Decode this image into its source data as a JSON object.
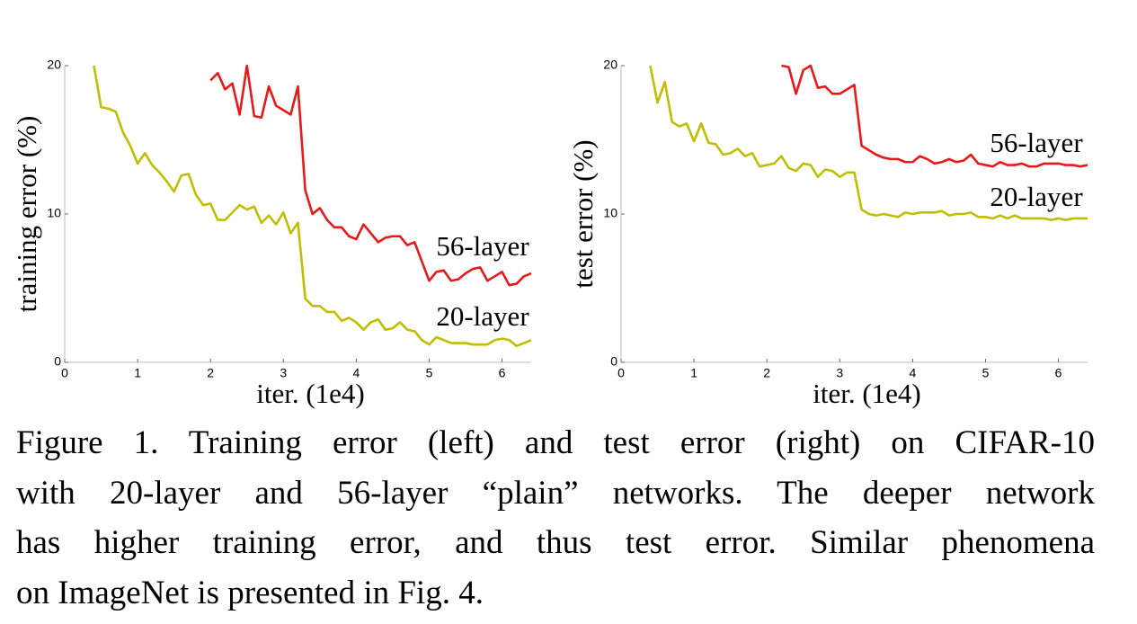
{
  "chart_data": [
    {
      "type": "line",
      "xlabel": "iter. (1e4)",
      "ylabel": "training error (%)",
      "x": [
        0.4,
        0.5,
        0.6,
        0.7,
        0.8,
        0.9,
        1.0,
        1.1,
        1.2,
        1.3,
        1.4,
        1.5,
        1.6,
        1.7,
        1.8,
        1.9,
        2.0,
        2.1,
        2.2,
        2.3,
        2.4,
        2.5,
        2.6,
        2.7,
        2.8,
        2.9,
        3.0,
        3.1,
        3.2,
        3.3,
        3.4,
        3.5,
        3.6,
        3.7,
        3.8,
        3.9,
        4.0,
        4.1,
        4.2,
        4.3,
        4.4,
        4.5,
        4.6,
        4.7,
        4.8,
        4.9,
        5.0,
        5.1,
        5.2,
        5.3,
        5.4,
        5.5,
        5.6,
        5.7,
        5.8,
        5.9,
        6.0,
        6.1,
        6.2,
        6.3,
        6.4
      ],
      "series": [
        {
          "name": "56-layer",
          "color": "#e8191a",
          "values": [
            null,
            null,
            null,
            null,
            null,
            null,
            null,
            null,
            null,
            null,
            null,
            null,
            null,
            null,
            null,
            null,
            19.0,
            19.5,
            18.4,
            18.8,
            16.7,
            20,
            16.6,
            16.5,
            18.6,
            17.3,
            17.0,
            16.7,
            18.6,
            11.6,
            10.0,
            10.4,
            9.6,
            9.1,
            9.1,
            8.5,
            8.3,
            9.3,
            8.7,
            8.1,
            8.4,
            8.5,
            8.5,
            7.9,
            8.1,
            6.8,
            5.5,
            6.1,
            6.2,
            5.5,
            5.6,
            6.0,
            6.3,
            6.4,
            5.5,
            5.8,
            6.1,
            5.2,
            5.3,
            5.8,
            6.0
          ]
        },
        {
          "name": "20-layer",
          "color": "#bfbf00",
          "values": [
            20,
            17.2,
            17.1,
            16.9,
            15.5,
            14.6,
            13.4,
            14.1,
            13.3,
            12.8,
            12.2,
            11.5,
            12.6,
            12.7,
            11.3,
            10.6,
            10.7,
            9.6,
            9.6,
            10.1,
            10.6,
            10.3,
            10.5,
            9.4,
            9.9,
            9.3,
            10.1,
            8.7,
            9.4,
            4.3,
            3.8,
            3.8,
            3.4,
            3.4,
            2.8,
            3.0,
            2.7,
            2.2,
            2.7,
            2.9,
            2.2,
            2.3,
            2.7,
            2.2,
            2.1,
            1.5,
            1.2,
            1.7,
            1.5,
            1.3,
            1.3,
            1.3,
            1.2,
            1.2,
            1.2,
            1.5,
            1.6,
            1.5,
            1.1,
            1.3,
            1.5
          ]
        }
      ],
      "xlim": [
        0,
        6.4
      ],
      "xticks": [
        0,
        1,
        2,
        3,
        4,
        5,
        6
      ],
      "ylim": [
        0,
        20
      ],
      "yticks": [
        0,
        10,
        20
      ],
      "grid": false
    },
    {
      "type": "line",
      "xlabel": "iter. (1e4)",
      "ylabel": "test error (%)",
      "x": [
        0.4,
        0.5,
        0.6,
        0.7,
        0.8,
        0.9,
        1.0,
        1.1,
        1.2,
        1.3,
        1.4,
        1.5,
        1.6,
        1.7,
        1.8,
        1.9,
        2.0,
        2.1,
        2.2,
        2.3,
        2.4,
        2.5,
        2.6,
        2.7,
        2.8,
        2.9,
        3.0,
        3.1,
        3.2,
        3.3,
        3.4,
        3.5,
        3.6,
        3.7,
        3.8,
        3.9,
        4.0,
        4.1,
        4.2,
        4.3,
        4.4,
        4.5,
        4.6,
        4.7,
        4.8,
        4.9,
        5.0,
        5.1,
        5.2,
        5.3,
        5.4,
        5.5,
        5.6,
        5.7,
        5.8,
        5.9,
        6.0,
        6.1,
        6.2,
        6.3,
        6.4
      ],
      "series": [
        {
          "name": "56-layer",
          "color": "#e8191a",
          "values": [
            null,
            null,
            null,
            null,
            null,
            null,
            null,
            null,
            null,
            null,
            null,
            null,
            null,
            null,
            null,
            null,
            null,
            null,
            20,
            19.9,
            18.1,
            19.7,
            20,
            18.5,
            18.6,
            18.1,
            18.1,
            18.4,
            18.7,
            14.6,
            14.3,
            14.0,
            13.8,
            13.7,
            13.7,
            13.5,
            13.5,
            13.9,
            13.7,
            13.4,
            13.5,
            13.7,
            13.5,
            13.6,
            14.0,
            13.4,
            13.3,
            13.2,
            13.5,
            13.3,
            13.3,
            13.4,
            13.2,
            13.2,
            13.4,
            13.4,
            13.4,
            13.3,
            13.3,
            13.2,
            13.3
          ]
        },
        {
          "name": "20-layer",
          "color": "#bfbf00",
          "values": [
            20,
            17.5,
            18.9,
            16.2,
            15.9,
            16.1,
            14.9,
            16.1,
            14.8,
            14.7,
            14.0,
            14.1,
            14.4,
            13.9,
            14.1,
            13.2,
            13.3,
            13.4,
            13.9,
            13.1,
            12.9,
            13.4,
            13.3,
            12.5,
            13.0,
            12.9,
            12.5,
            12.8,
            12.8,
            10.3,
            10.0,
            9.9,
            10.0,
            9.9,
            9.8,
            10.1,
            10.0,
            10.1,
            10.1,
            10.1,
            10.2,
            9.9,
            10.0,
            10.0,
            10.1,
            9.8,
            9.8,
            9.7,
            9.9,
            9.7,
            9.9,
            9.7,
            9.7,
            9.7,
            9.7,
            9.6,
            9.7,
            9.6,
            9.7,
            9.7,
            9.7
          ]
        }
      ],
      "xlim": [
        0,
        6.4
      ],
      "xticks": [
        0,
        1,
        2,
        3,
        4,
        5,
        6
      ],
      "ylim": [
        0,
        20
      ],
      "yticks": [
        0,
        10,
        20
      ],
      "grid": false
    }
  ],
  "caption": {
    "lines": [
      "Figure 1. Training error (left) and test error (right) on CIFAR-10",
      "with 20-layer and 56-layer “plain” networks. The deeper network",
      "has higher training error, and thus test error.  Similar phenomena",
      "on ImageNet is presented in Fig. 4."
    ]
  }
}
